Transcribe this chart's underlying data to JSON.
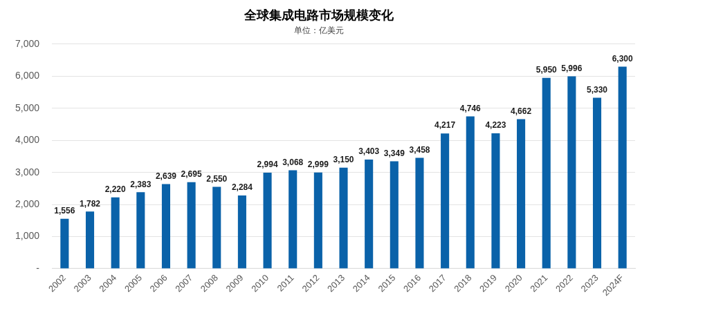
{
  "chart_data": {
    "type": "bar",
    "title": "全球集成电路市场规模变化",
    "subtitle": "单位：亿美元",
    "categories": [
      "2002",
      "2003",
      "2004",
      "2005",
      "2006",
      "2007",
      "2008",
      "2009",
      "2010",
      "2011",
      "2012",
      "2013",
      "2014",
      "2015",
      "2016",
      "2017",
      "2018",
      "2019",
      "2020",
      "2021",
      "2022",
      "2023",
      "2024F"
    ],
    "values": [
      1556,
      1782,
      2220,
      2383,
      2639,
      2695,
      2550,
      2284,
      2994,
      3068,
      2999,
      3150,
      3403,
      3349,
      3458,
      4217,
      4746,
      4223,
      4662,
      5950,
      5996,
      5330,
      6300
    ],
    "value_labels": [
      "1,556",
      "1,782",
      "2,220",
      "2,383",
      "2,639",
      "2,695",
      "2,550",
      "2,284",
      "2,994",
      "3,068",
      "2,999",
      "3,150",
      "3,403",
      "3,349",
      "3,458",
      "4,217",
      "4,746",
      "4,223",
      "4,662",
      "5,950",
      "5,996",
      "5,330",
      "6,300"
    ],
    "color": "#0a62a9",
    "ylim": [
      0,
      7000
    ],
    "yticks": [
      {
        "value": 0,
        "label": "-"
      },
      {
        "value": 1000,
        "label": "1,000"
      },
      {
        "value": 2000,
        "label": "2,000"
      },
      {
        "value": 3000,
        "label": "3,000"
      },
      {
        "value": 4000,
        "label": "4,000"
      },
      {
        "value": 5000,
        "label": "5,000"
      },
      {
        "value": 6000,
        "label": "6,000"
      },
      {
        "value": 7000,
        "label": "7,000"
      }
    ],
    "grid": "y"
  }
}
